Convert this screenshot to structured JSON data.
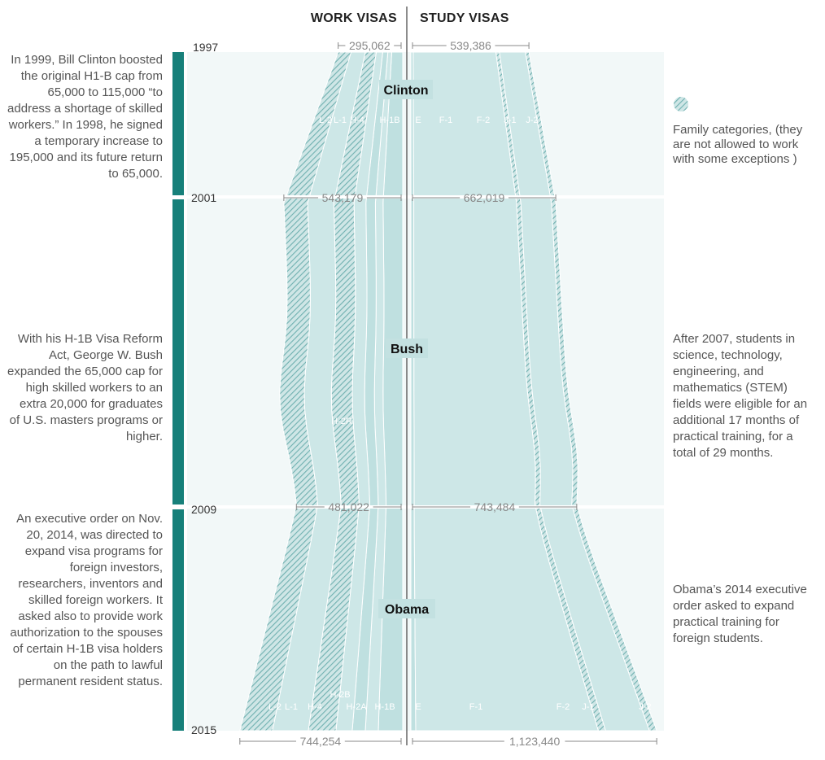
{
  "headers": {
    "work": "WORK VISAS",
    "study": "STUDY VISAS"
  },
  "chart_data": {
    "type": "area",
    "layout": "streamgraph (mirrored around a center axis)",
    "years": [
      1997,
      2001,
      2009,
      2015
    ],
    "totals": {
      "work": [
        295062,
        543179,
        481022,
        744254
      ],
      "study": [
        539386,
        662019,
        743484,
        1123440
      ]
    },
    "total_labels": {
      "work": [
        "295,062",
        "543,179",
        "481,022",
        "744,254"
      ],
      "study": [
        "539,386",
        "662,019",
        "743,484",
        "1,123,440"
      ]
    },
    "work_categories": [
      "L-2",
      "L-1",
      "H-4",
      "H-2R",
      "H-2B",
      "H-2A",
      "H-1B"
    ],
    "study_categories": [
      "E",
      "F-1",
      "F-2",
      "J-1",
      "J-2"
    ],
    "family_categories_hatched": [
      "L-2",
      "H-4",
      "F-2",
      "J-2"
    ],
    "presidencies": [
      {
        "name": "Clinton",
        "start": 1997,
        "end": 2001
      },
      {
        "name": "Bush",
        "start": 2001,
        "end": 2009
      },
      {
        "name": "Obama",
        "start": 2009,
        "end": 2015
      }
    ],
    "legend": {
      "hatched": "Family categories, (they are not allowed to work with some exceptions )",
      "placement": "right"
    },
    "colors": {
      "band": "#bfe0e0",
      "band_light": "#cde7e7",
      "bg": "#f2f8f8",
      "era_bar": "#17807a",
      "hatch": "#7fb8b8",
      "axis": "#888888"
    }
  },
  "notes": {
    "clinton": "In 1999, Bill Clinton boosted the original H1-B cap from 65,000 to 115,000 “to address a shortage of skilled workers.” In 1998, he signed a temporary increase to 195,000 and its future return to 65,000.",
    "bush": "With his H-1B Visa Reform Act, George W. Bush expanded the 65,000 cap for high skilled workers to an extra 20,000 for graduates of U.S. masters programs or higher.",
    "obama": "An executive order on Nov. 20, 2014, was directed to expand visa programs for foreign investors, researchers, inventors and skilled foreign workers. It asked also to provide work authorization to the spouses of certain H-1B visa holders on the path to lawful permanent resident status.",
    "stem": "After 2007, students in science, technology, engineering, and mathematics (STEM) fields were eligible for an additional 17 months of practical training, for a total of 29 months.",
    "obama_students": "Obama’s 2014 executive order asked to expand practical training for foreign students."
  }
}
